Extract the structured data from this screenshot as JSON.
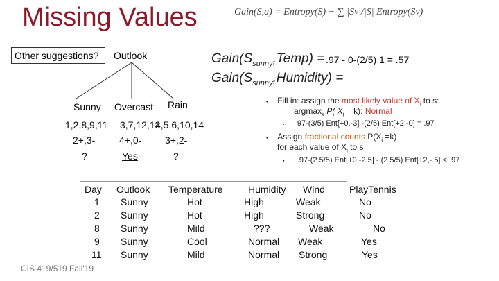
{
  "title": "Missing Values",
  "formula_top": "Gain(S,a) = Entropy(S) − ∑ |Sv|/|S| Entropy(Sv)",
  "question_box": "Other suggestions?",
  "tree": {
    "root": "Outlook",
    "branches": [
      "Sunny",
      "Overcast",
      "Rain"
    ],
    "days": [
      "1,2,8,9,11",
      "3,7,12,13",
      "4,5,6,10,14"
    ],
    "counts": [
      "2+,3-",
      "4+,0-",
      "3+,2-"
    ],
    "labels": [
      "?",
      "Yes",
      "?"
    ]
  },
  "gains": {
    "temp_label": "Gain(S",
    "temp_sub": "sunny",
    "temp_rest": ",Temp) =",
    "temp_value": ".97 - 0-(2/5) 1 = .57",
    "hum_label": "Gain(S",
    "hum_sub": "sunny",
    "hum_rest": ",Humidity) ="
  },
  "bullets": {
    "fill_in_prefix": "Fill in: assign the",
    "fill_in_red": "most likely value of X",
    "fill_in_sub": "i",
    "fill_in_mid": " to s:",
    "argmax_prefix": "argmax",
    "argmax_sub": "k",
    "argmax_mid": " P( X",
    "argmax_sub2": "i",
    "argmax_eq": " = k): ",
    "argmax_red": "Normal",
    "sub1": "97-(3/5) Ent[+0,-3] -(2/5) Ent[+2,-0] = .97",
    "assign_prefix": "Assign",
    "assign_orange": "fractional counts",
    "assign_rest": "P(X",
    "assign_sub": "i",
    "assign_rest2": " =k)",
    "assign_line2": "for each value of X",
    "assign_sub2": "i",
    "assign_line2_end": " to s",
    "sub2": ".97-(2.5/5) Ent[+0,-2.5] - (2.5/5) Ent[+2,-.5] < .97"
  },
  "table": {
    "headers": [
      "Day",
      "Outlook",
      "Temperature",
      "Humidity",
      "Wind",
      "PlayTennis"
    ],
    "rows": [
      [
        "1",
        "Sunny",
        "Hot",
        "High",
        "Weak",
        "No"
      ],
      [
        "2",
        "Sunny",
        "Hot",
        "High",
        "Strong",
        "No"
      ],
      [
        "8",
        "Sunny",
        "Mild",
        "???",
        "Weak",
        "No"
      ],
      [
        "9",
        "Sunny",
        "Cool",
        "Normal",
        "Weak",
        "Yes"
      ],
      [
        "11",
        "Sunny",
        "Mild",
        "Normal",
        "Strong",
        "Yes"
      ]
    ]
  },
  "footer": "CIS 419/519 Fall'19"
}
